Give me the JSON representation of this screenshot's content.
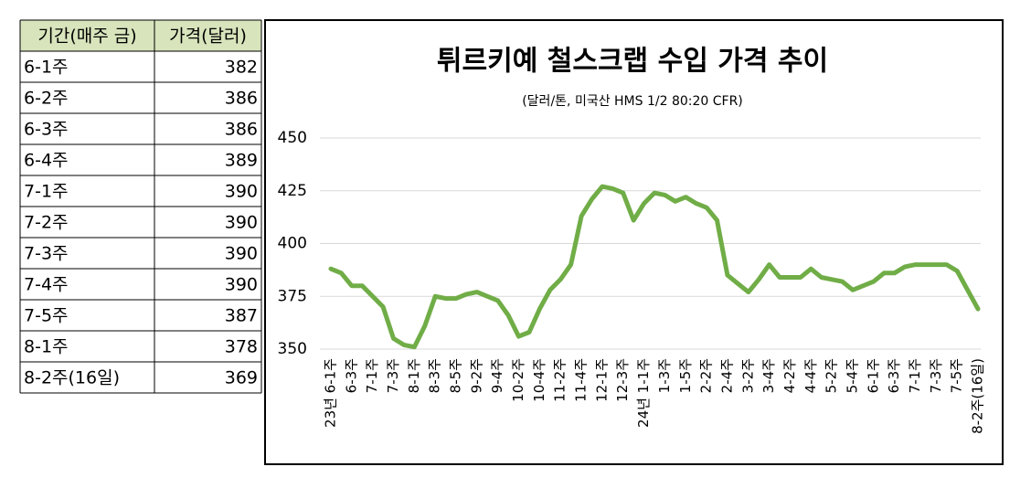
{
  "table": {
    "header": [
      "기간(매주 금)",
      "가격(달러)"
    ],
    "rows": [
      [
        "6-1주",
        382
      ],
      [
        "6-2주",
        386
      ],
      [
        "6-3주",
        386
      ],
      [
        "6-4주",
        389
      ],
      [
        "7-1주",
        390
      ],
      [
        "7-2주",
        390
      ],
      [
        "7-3주",
        390
      ],
      [
        "7-4주",
        390
      ],
      [
        "7-5주",
        387
      ],
      [
        "8-1주",
        378
      ],
      [
        "8-2주(16일)",
        369
      ]
    ]
  },
  "chart_data": {
    "type": "line",
    "title": "튀르키예 철스크랩 수입 가격 추이",
    "subtitle": "(달러/톤, 미국산 HMS 1/2 80:20 CFR)",
    "categories": [
      "23년 6-1주",
      null,
      "6-3주",
      null,
      "7-1주",
      null,
      "7-3주",
      null,
      "8-1주",
      null,
      "8-3주",
      null,
      "8-5주",
      null,
      "9-2주",
      null,
      "9-4주",
      null,
      "10-2주",
      null,
      "10-4주",
      null,
      "11-2주",
      null,
      "11-4주",
      null,
      "12-1주",
      null,
      "12-3주",
      null,
      "24년 1-1주",
      null,
      "1-3주",
      null,
      "1-5주",
      null,
      "2-2주",
      null,
      "2-4주",
      null,
      "3-2주",
      null,
      "3-4주",
      null,
      "4-2주",
      null,
      "4-4주",
      null,
      "5-2주",
      null,
      "5-4주",
      null,
      "6-1주",
      null,
      "6-3주",
      null,
      "7-1주",
      null,
      "7-3주",
      null,
      "7-5주",
      null,
      "8-2주(16일)"
    ],
    "series": [
      {
        "name": "가격",
        "color": "#70ad47",
        "values": [
          388,
          386,
          380,
          380,
          375,
          370,
          355,
          352,
          351,
          361,
          375,
          374,
          374,
          376,
          377,
          375,
          373,
          366,
          356,
          358,
          369,
          378,
          383,
          390,
          413,
          421,
          427,
          426,
          424,
          411,
          419,
          424,
          423,
          420,
          422,
          419,
          417,
          411,
          385,
          381,
          377,
          383,
          390,
          384,
          384,
          384,
          388,
          384,
          383,
          382,
          378,
          380,
          382,
          386,
          386,
          389,
          390,
          390,
          390,
          390,
          387,
          378,
          369
        ]
      }
    ],
    "ylim": [
      350,
      450
    ],
    "yticks": [
      350,
      375,
      400,
      425,
      450
    ],
    "grid": true
  }
}
